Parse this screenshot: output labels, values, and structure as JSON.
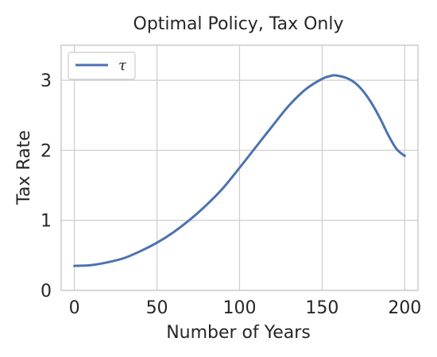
{
  "chart_data": {
    "type": "line",
    "title": "Optimal Policy, Tax Only",
    "xlabel": "Number of Years",
    "ylabel": "Tax Rate",
    "xlim": [
      -8,
      208
    ],
    "ylim": [
      0,
      3.5
    ],
    "grid": true,
    "legend_placement": "upper-left",
    "x_ticks": [
      0,
      50,
      100,
      150,
      200
    ],
    "x_tick_labels": [
      "0",
      "50",
      "100",
      "150",
      "200"
    ],
    "y_ticks": [
      0,
      1,
      2,
      3
    ],
    "y_tick_labels": [
      "0",
      "1",
      "2",
      "3"
    ],
    "series": [
      {
        "name": "τ",
        "color": "#4c72b0",
        "x": [
          0,
          10,
          20,
          30,
          40,
          50,
          60,
          70,
          80,
          90,
          100,
          110,
          120,
          130,
          140,
          150,
          155,
          158,
          165,
          170,
          175,
          180,
          185,
          190,
          195,
          200
        ],
        "y": [
          0.35,
          0.36,
          0.4,
          0.46,
          0.56,
          0.68,
          0.83,
          1.01,
          1.22,
          1.46,
          1.75,
          2.05,
          2.35,
          2.64,
          2.87,
          3.02,
          3.06,
          3.07,
          3.03,
          2.96,
          2.84,
          2.67,
          2.46,
          2.22,
          2.02,
          1.92
        ]
      }
    ]
  }
}
